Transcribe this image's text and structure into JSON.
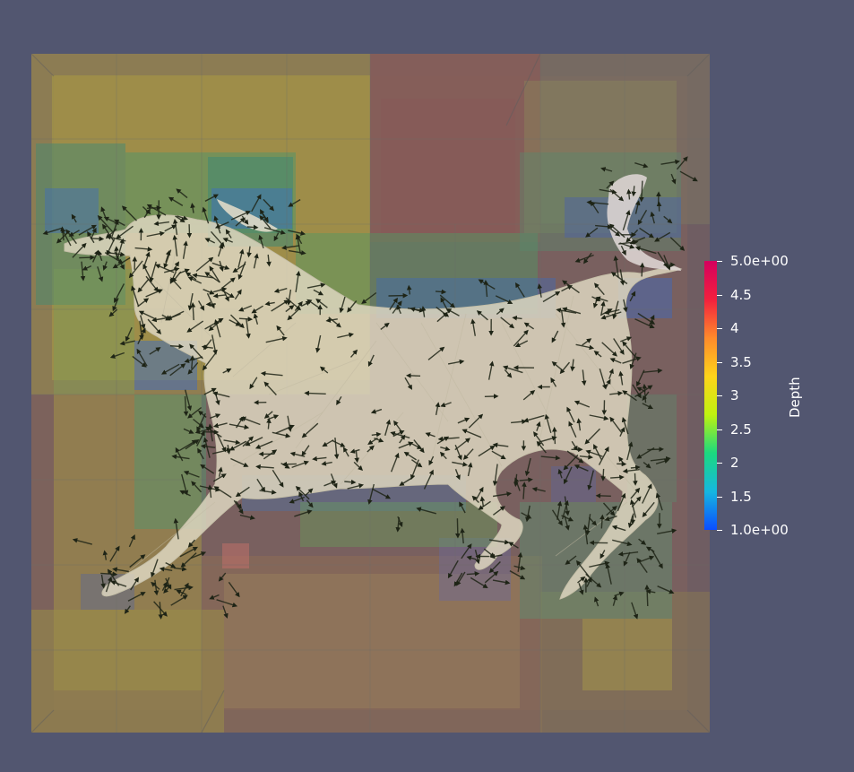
{
  "viewport": {
    "background_color": "#525670"
  },
  "scene": {
    "description_icon": "octree-depth-visualization-of-mesh",
    "colors": {
      "mesh_fill": "#ddd6bf",
      "mesh_edge": "#c7c1ab",
      "arrow": "#1e2416",
      "depth_1": "#3b6fd8",
      "depth_2": "#45a86c",
      "depth_3": "#b8ad3c",
      "depth_4": "#a5734f",
      "depth_5": "#8b5d5a"
    }
  },
  "colorbar": {
    "title": "Depth",
    "range": [
      1.0,
      5.0
    ],
    "colormap": [
      "#0b4dff",
      "#16b7e0",
      "#1bd97f",
      "#bff20f",
      "#ffd31a",
      "#ff8a2b",
      "#f2203e",
      "#d4005e"
    ],
    "ticks": [
      {
        "value": 5.0,
        "label": "5.0e+00"
      },
      {
        "value": 4.5,
        "label": "4.5"
      },
      {
        "value": 4.0,
        "label": "4"
      },
      {
        "value": 3.5,
        "label": "3.5"
      },
      {
        "value": 3.0,
        "label": "3"
      },
      {
        "value": 2.5,
        "label": "2.5"
      },
      {
        "value": 2.0,
        "label": "2"
      },
      {
        "value": 1.5,
        "label": "1.5"
      },
      {
        "value": 1.0,
        "label": "1.0e+00"
      }
    ]
  }
}
